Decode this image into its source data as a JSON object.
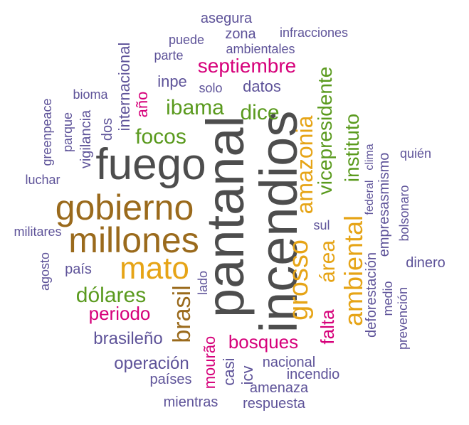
{
  "colors": {
    "gray": "#4d4d4d",
    "brown": "#9a6a1c",
    "gold": "#e6a416",
    "green": "#5a9a1e",
    "magenta": "#d6007a",
    "purple": "#5e5399"
  },
  "words": [
    {
      "text": "incendios",
      "color": "gray"
    },
    {
      "text": "pantanal",
      "color": "gray"
    },
    {
      "text": "fuego",
      "color": "gray"
    },
    {
      "text": "gobierno",
      "color": "brown"
    },
    {
      "text": "millones",
      "color": "brown"
    },
    {
      "text": "mato",
      "color": "gold"
    },
    {
      "text": "amazonia",
      "color": "gold"
    },
    {
      "text": "grosso",
      "color": "gold"
    },
    {
      "text": "ambiental",
      "color": "gold"
    },
    {
      "text": "área",
      "color": "gold"
    },
    {
      "text": "brasil",
      "color": "brown"
    },
    {
      "text": "vicepresidente",
      "color": "green"
    },
    {
      "text": "instituto",
      "color": "green"
    },
    {
      "text": "ibama",
      "color": "green"
    },
    {
      "text": "dice",
      "color": "green"
    },
    {
      "text": "focos",
      "color": "green"
    },
    {
      "text": "dólares",
      "color": "green"
    },
    {
      "text": "septiembre",
      "color": "magenta"
    },
    {
      "text": "periodo",
      "color": "magenta"
    },
    {
      "text": "bosques",
      "color": "magenta"
    },
    {
      "text": "falta",
      "color": "magenta"
    },
    {
      "text": "mourão",
      "color": "magenta"
    },
    {
      "text": "año",
      "color": "magenta"
    },
    {
      "text": "internacional",
      "color": "purple"
    },
    {
      "text": "datos",
      "color": "purple"
    },
    {
      "text": "inpe",
      "color": "purple"
    },
    {
      "text": "solo",
      "color": "purple"
    },
    {
      "text": "asegura",
      "color": "purple"
    },
    {
      "text": "zona",
      "color": "purple"
    },
    {
      "text": "infracciones",
      "color": "purple"
    },
    {
      "text": "puede",
      "color": "purple"
    },
    {
      "text": "ambientales",
      "color": "purple"
    },
    {
      "text": "parte",
      "color": "purple"
    },
    {
      "text": "bioma",
      "color": "purple"
    },
    {
      "text": "dos",
      "color": "purple"
    },
    {
      "text": "parque",
      "color": "purple"
    },
    {
      "text": "vigilancia",
      "color": "purple"
    },
    {
      "text": "greenpeace",
      "color": "purple"
    },
    {
      "text": "luchar",
      "color": "purple"
    },
    {
      "text": "militares",
      "color": "purple"
    },
    {
      "text": "agosto",
      "color": "purple"
    },
    {
      "text": "país",
      "color": "purple"
    },
    {
      "text": "lado",
      "color": "purple"
    },
    {
      "text": "brasileño",
      "color": "purple"
    },
    {
      "text": "operación",
      "color": "purple"
    },
    {
      "text": "países",
      "color": "purple"
    },
    {
      "text": "mientras",
      "color": "purple"
    },
    {
      "text": "casi",
      "color": "purple"
    },
    {
      "text": "icv",
      "color": "purple"
    },
    {
      "text": "nacional",
      "color": "purple"
    },
    {
      "text": "incendio",
      "color": "purple"
    },
    {
      "text": "amenaza",
      "color": "purple"
    },
    {
      "text": "respuesta",
      "color": "purple"
    },
    {
      "text": "sul",
      "color": "purple"
    },
    {
      "text": "deforestación",
      "color": "purple"
    },
    {
      "text": "federal",
      "color": "purple"
    },
    {
      "text": "clima",
      "color": "purple"
    },
    {
      "text": "empresasmismo",
      "color": "purple"
    },
    {
      "text": "medio",
      "color": "purple"
    },
    {
      "text": "prevención",
      "color": "purple"
    },
    {
      "text": "quién",
      "color": "purple"
    },
    {
      "text": "bolsonaro",
      "color": "purple"
    },
    {
      "text": "dinero",
      "color": "purple"
    }
  ]
}
